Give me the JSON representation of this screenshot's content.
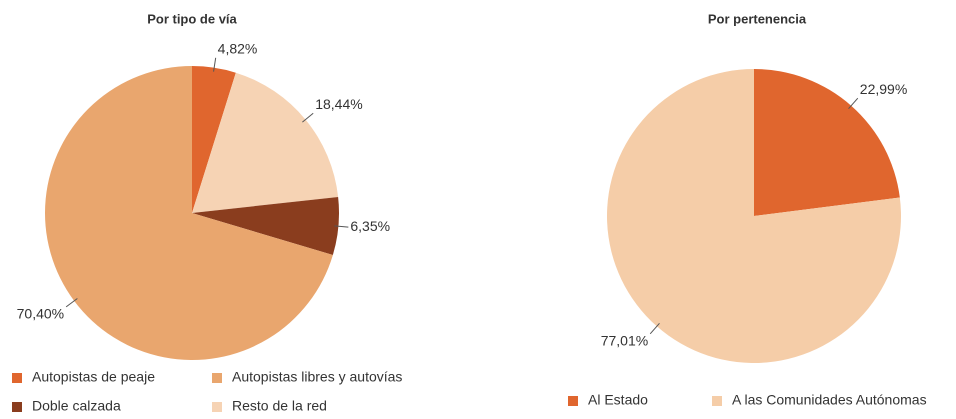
{
  "chart_data": [
    {
      "type": "pie",
      "title": "Por tipo de vía",
      "categories": [
        "Autopistas de peaje",
        "Resto de la red",
        "Doble calzada",
        "Autopistas libres y autovías"
      ],
      "values": [
        4.82,
        18.44,
        6.35,
        70.4
      ],
      "value_labels": [
        "4,82%",
        "18,44%",
        "6,35%",
        "70,40%"
      ],
      "colors": [
        "#e0662e",
        "#f6d3b4",
        "#8a3d1e",
        "#e9a66e"
      ]
    },
    {
      "type": "pie",
      "title": "Por pertenencia",
      "categories": [
        "Al Estado",
        "A las Comunidades Autónomas"
      ],
      "values": [
        22.99,
        77.01
      ],
      "value_labels": [
        "22,99%",
        "77,01%"
      ],
      "colors": [
        "#e0662e",
        "#f5cda8"
      ]
    }
  ]
}
